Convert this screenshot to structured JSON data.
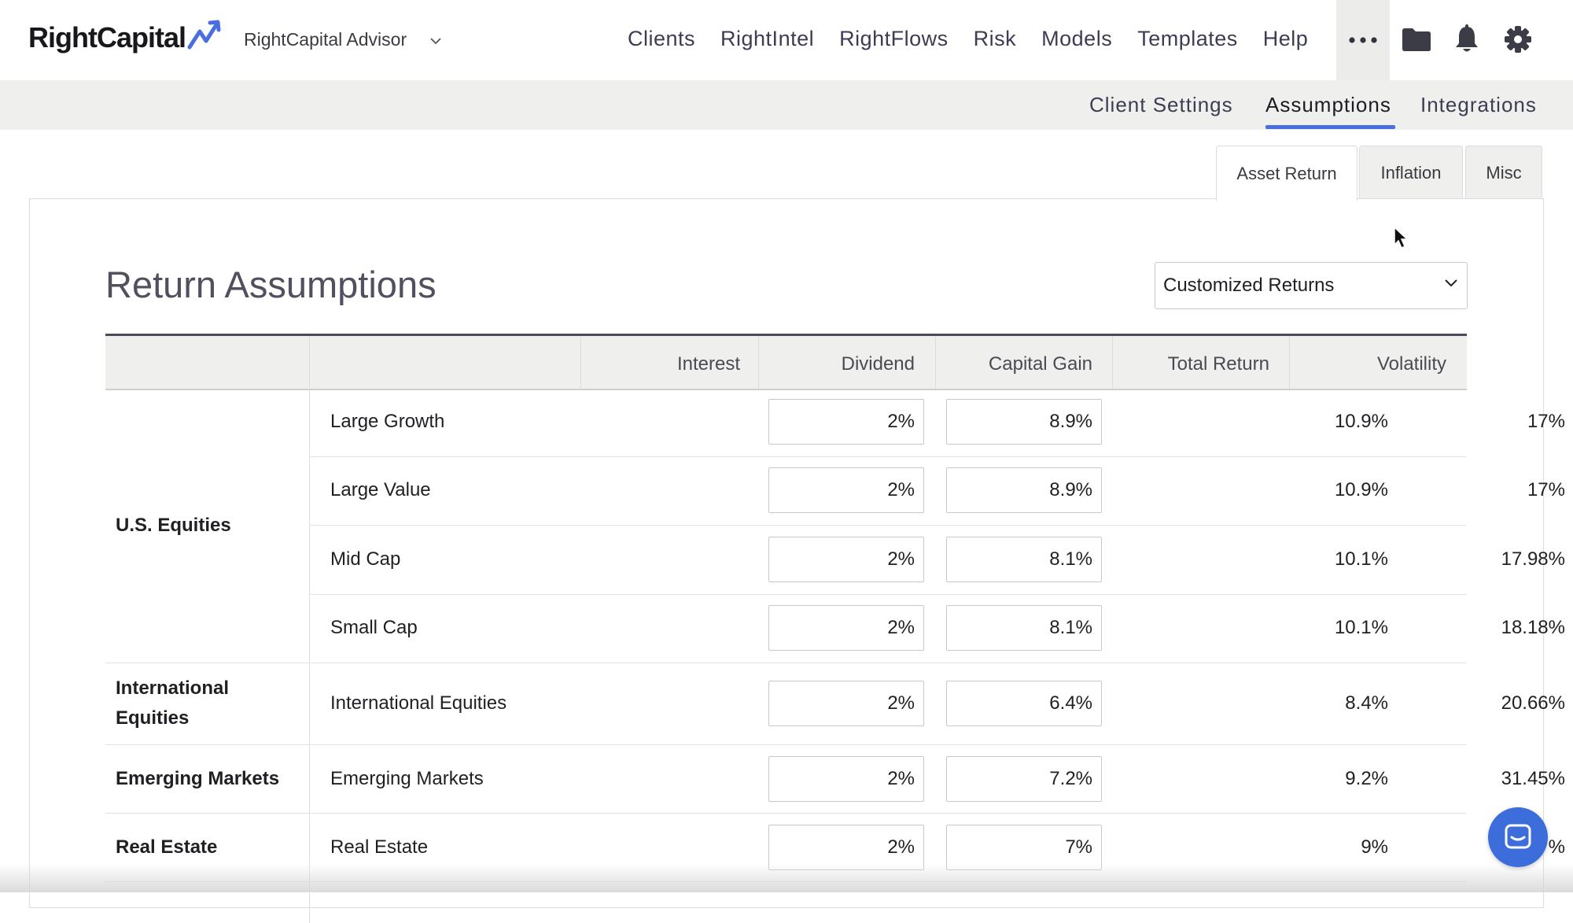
{
  "brand": {
    "logo_text": "RightCapital",
    "accent": "#4a6ee0"
  },
  "account": {
    "advisor_label": "RightCapital Advisor"
  },
  "topnav": {
    "items": [
      "Clients",
      "RightIntel",
      "RightFlows",
      "Risk",
      "Models",
      "Templates",
      "Help"
    ],
    "icons": [
      "more-icon",
      "folder-icon",
      "bell-icon",
      "gear-icon"
    ]
  },
  "subnav": {
    "items": [
      "Client Settings",
      "Assumptions",
      "Integrations"
    ],
    "active": "Assumptions"
  },
  "tabs": {
    "items": [
      "Asset Return",
      "Inflation",
      "Misc"
    ],
    "active": "Asset Return"
  },
  "page": {
    "title": "Return Assumptions",
    "returns_select": "Customized Returns"
  },
  "table": {
    "headers": {
      "interest": "Interest",
      "dividend": "Dividend",
      "capital_gain": "Capital Gain",
      "total_return": "Total Return",
      "volatility": "Volatility"
    },
    "groups": [
      "U.S. Equities",
      "International Equities",
      "Emerging Markets",
      "Real Estate"
    ],
    "rows": [
      {
        "group": "U.S. Equities",
        "asset": "Large Growth",
        "dividend": "2%",
        "capital_gain": "8.9%",
        "total_return": "10.9%",
        "volatility": "17%"
      },
      {
        "group": "U.S. Equities",
        "asset": "Large Value",
        "dividend": "2%",
        "capital_gain": "8.9%",
        "total_return": "10.9%",
        "volatility": "17%"
      },
      {
        "group": "U.S. Equities",
        "asset": "Mid Cap",
        "dividend": "2%",
        "capital_gain": "8.1%",
        "total_return": "10.1%",
        "volatility": "17.98%"
      },
      {
        "group": "U.S. Equities",
        "asset": "Small Cap",
        "dividend": "2%",
        "capital_gain": "8.1%",
        "total_return": "10.1%",
        "volatility": "18.18%"
      },
      {
        "group": "International Equities",
        "asset": "International Equities",
        "dividend": "2%",
        "capital_gain": "6.4%",
        "total_return": "8.4%",
        "volatility": "20.66%"
      },
      {
        "group": "Emerging Markets",
        "asset": "Emerging Markets",
        "dividend": "2%",
        "capital_gain": "7.2%",
        "total_return": "9.2%",
        "volatility": "31.45%"
      },
      {
        "group": "Real Estate",
        "asset": "Real Estate",
        "dividend": "2%",
        "capital_gain": "7%",
        "total_return": "9%",
        "volatility": "16.97%"
      }
    ]
  },
  "chat": {
    "icon": "chat-icon",
    "color": "#3d6ddb"
  }
}
